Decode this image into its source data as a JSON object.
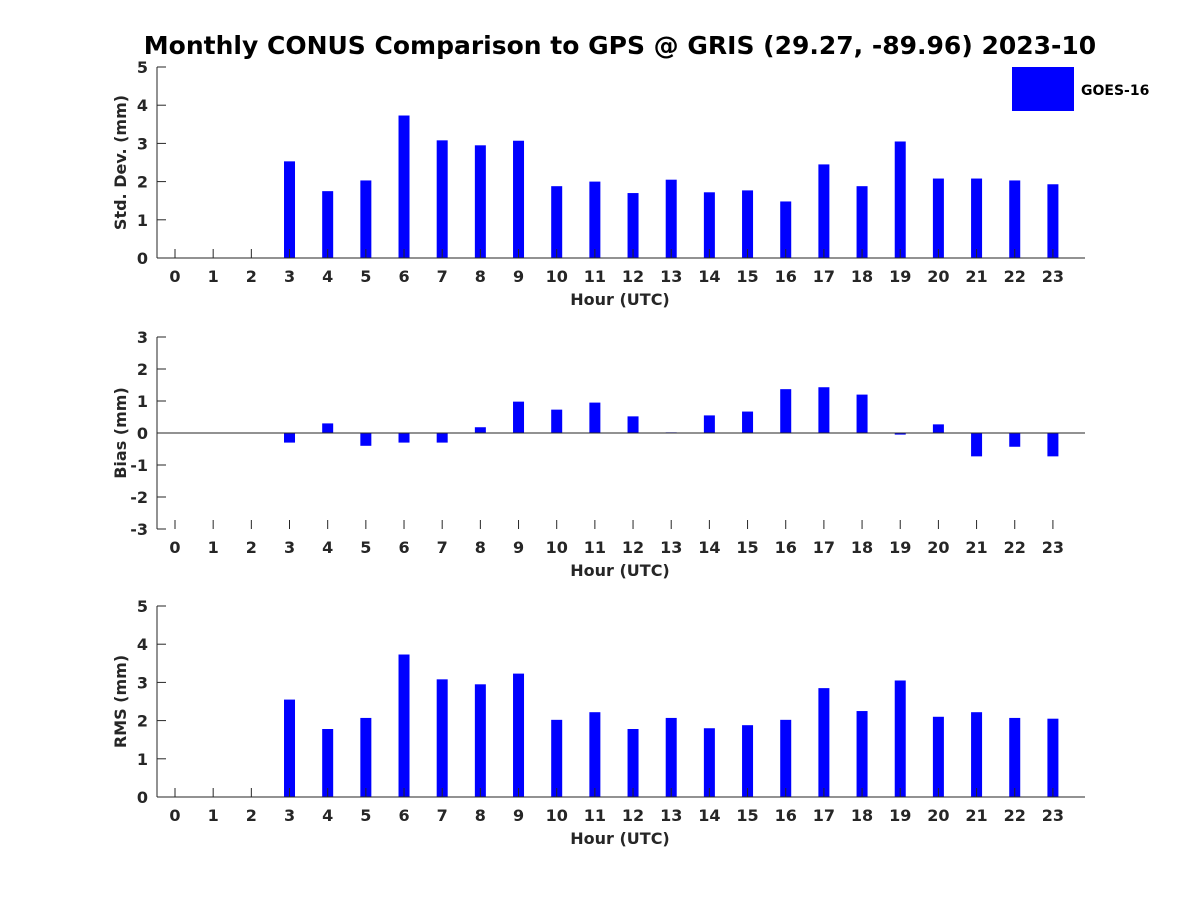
{
  "chart_data": {
    "title": "Monthly CONUS Comparison to GPS @ GRIS (29.27, -89.96) 2023-10",
    "legend": {
      "entries": [
        "GOES-16"
      ],
      "placement": "top-right"
    },
    "series_color": "#0000ff",
    "panels": [
      {
        "type": "bar",
        "ylabel": "Std. Dev. (mm)",
        "xlabel": "Hour (UTC)",
        "ylim": [
          0,
          5
        ],
        "yticks": [
          0,
          1,
          2,
          3,
          4,
          5
        ],
        "categories": [
          0,
          1,
          2,
          3,
          4,
          5,
          6,
          7,
          8,
          9,
          10,
          11,
          12,
          13,
          14,
          15,
          16,
          17,
          18,
          19,
          20,
          21,
          22,
          23
        ],
        "series": [
          {
            "name": "GOES-16",
            "values": [
              null,
              null,
              null,
              2.53,
              1.75,
              2.03,
              3.73,
              3.08,
              2.95,
              3.07,
              1.88,
              2.0,
              1.7,
              2.05,
              1.72,
              1.77,
              1.48,
              2.45,
              1.88,
              3.05,
              2.08,
              2.08,
              2.03,
              1.93
            ]
          }
        ]
      },
      {
        "type": "bar",
        "ylabel": "Bias (mm)",
        "xlabel": "Hour (UTC)",
        "ylim": [
          -3,
          3
        ],
        "yticks": [
          -3,
          -2,
          -1,
          0,
          1,
          2,
          3
        ],
        "categories": [
          0,
          1,
          2,
          3,
          4,
          5,
          6,
          7,
          8,
          9,
          10,
          11,
          12,
          13,
          14,
          15,
          16,
          17,
          18,
          19,
          20,
          21,
          22,
          23
        ],
        "series": [
          {
            "name": "GOES-16",
            "values": [
              null,
              null,
              null,
              -0.3,
              0.3,
              -0.4,
              -0.3,
              -0.3,
              0.18,
              0.98,
              0.73,
              0.95,
              0.52,
              0.02,
              0.55,
              0.67,
              1.37,
              1.43,
              1.2,
              -0.05,
              0.27,
              -0.73,
              -0.43,
              -0.73
            ]
          }
        ]
      },
      {
        "type": "bar",
        "ylabel": "RMS (mm)",
        "xlabel": "Hour (UTC)",
        "ylim": [
          0,
          5
        ],
        "yticks": [
          0,
          1,
          2,
          3,
          4,
          5
        ],
        "categories": [
          0,
          1,
          2,
          3,
          4,
          5,
          6,
          7,
          8,
          9,
          10,
          11,
          12,
          13,
          14,
          15,
          16,
          17,
          18,
          19,
          20,
          21,
          22,
          23
        ],
        "series": [
          {
            "name": "GOES-16",
            "values": [
              null,
              null,
              null,
              2.55,
              1.78,
              2.07,
              3.73,
              3.08,
              2.95,
              3.23,
              2.02,
              2.22,
              1.78,
              2.07,
              1.8,
              1.88,
              2.02,
              2.85,
              2.25,
              3.05,
              2.1,
              2.22,
              2.07,
              2.05
            ]
          }
        ]
      }
    ]
  }
}
